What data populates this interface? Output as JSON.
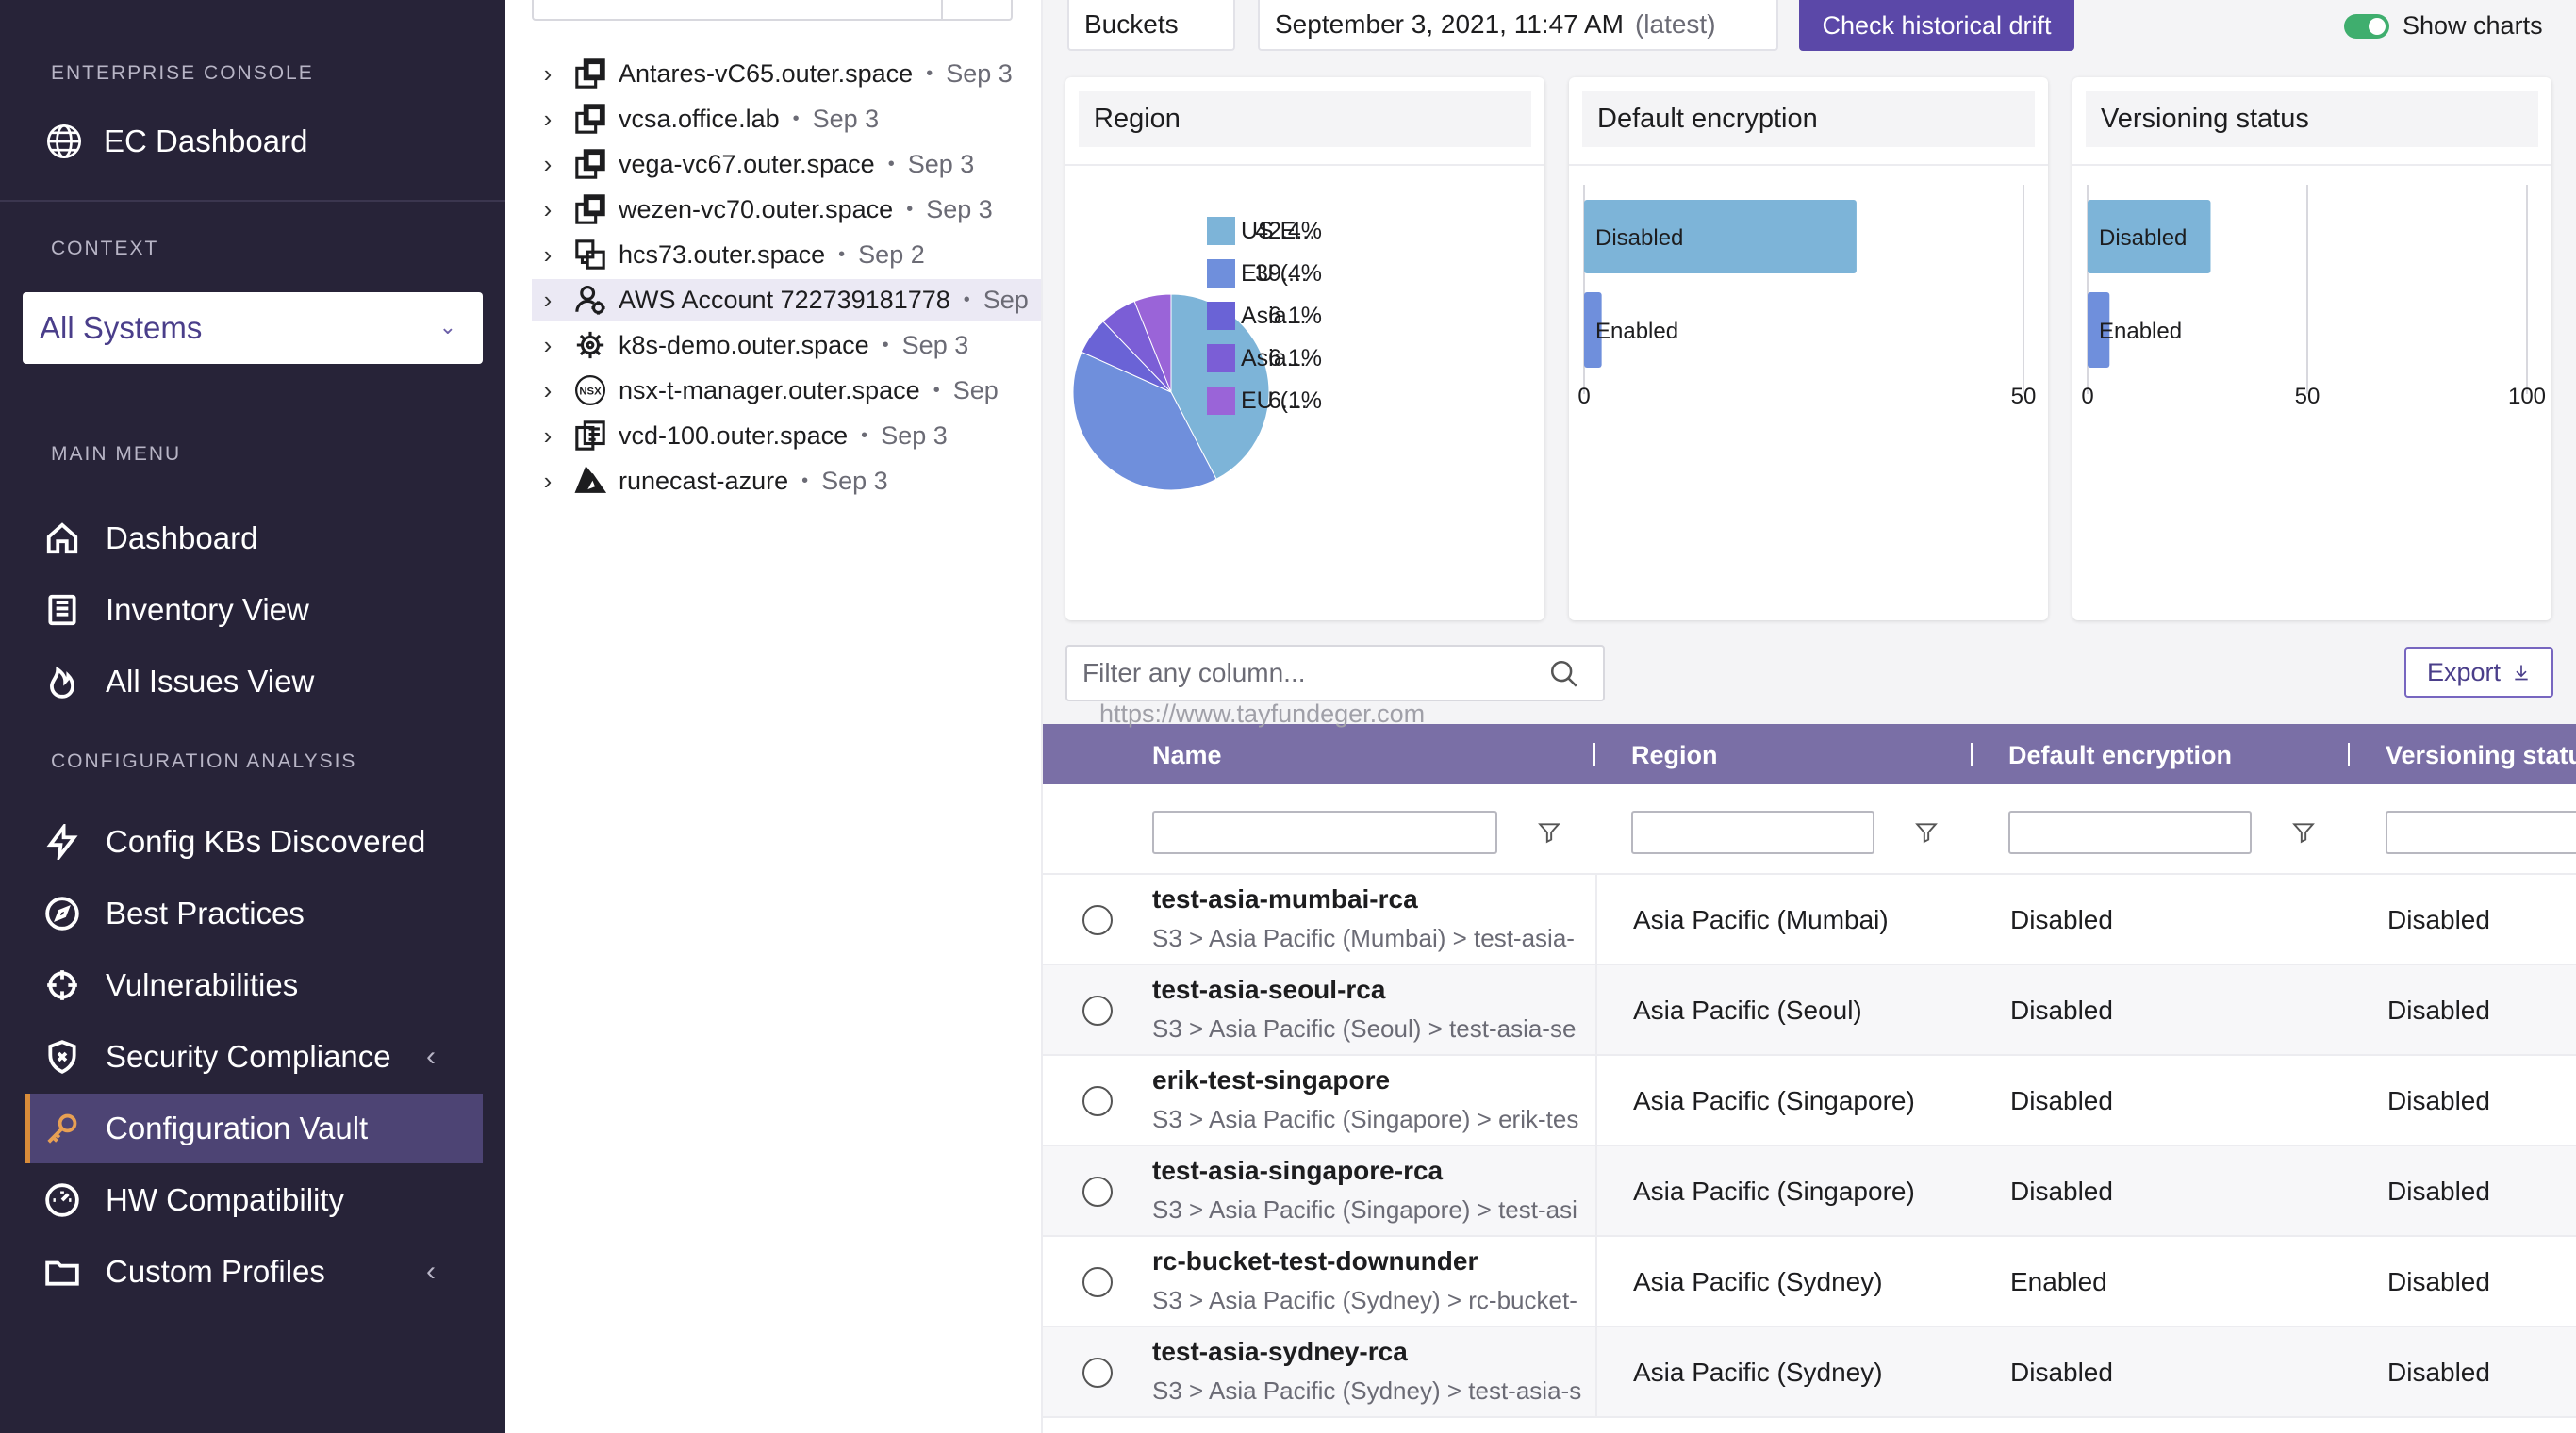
{
  "sidebar": {
    "section_console": "ENTERPRISE CONSOLE",
    "app_title": "EC Dashboard",
    "section_context": "CONTEXT",
    "context_value": "All Systems",
    "section_main": "MAIN MENU",
    "main_items": [
      {
        "label": "Dashboard",
        "icon": "home-icon"
      },
      {
        "label": "Inventory View",
        "icon": "book-icon"
      },
      {
        "label": "All Issues View",
        "icon": "flame-icon"
      }
    ],
    "section_config": "CONFIGURATION ANALYSIS",
    "config_items": [
      {
        "label": "Config KBs Discovered",
        "icon": "bolt-icon"
      },
      {
        "label": "Best Practices",
        "icon": "compass-icon"
      },
      {
        "label": "Vulnerabilities",
        "icon": "crosshair-icon"
      },
      {
        "label": "Security Compliance",
        "icon": "shield-icon"
      },
      {
        "label": "Configuration Vault",
        "icon": "key-icon"
      },
      {
        "label": "HW Compatibility",
        "icon": "gauge-icon"
      },
      {
        "label": "Custom Profiles",
        "icon": "folder-icon"
      }
    ],
    "active_color": "#d98c3a"
  },
  "tree": {
    "items": [
      {
        "name": "Antares-vC65.outer.space",
        "date": "Sep 3",
        "icon": "vcenter-icon"
      },
      {
        "name": "vcsa.office.lab",
        "date": "Sep 3",
        "icon": "vcenter-icon"
      },
      {
        "name": "vega-vc67.outer.space",
        "date": "Sep 3",
        "icon": "vcenter-icon"
      },
      {
        "name": "wezen-vc70.outer.space",
        "date": "Sep 3",
        "icon": "vcenter-icon"
      },
      {
        "name": "hcs73.outer.space",
        "date": "Sep 2",
        "icon": "hcs-icon"
      },
      {
        "name": "AWS Account 722739181778",
        "date": "Sep",
        "icon": "aws-account-icon"
      },
      {
        "name": "k8s-demo.outer.space",
        "date": "Sep 3",
        "icon": "kubernetes-icon"
      },
      {
        "name": "nsx-t-manager.outer.space",
        "date": "Sep",
        "icon": "nsxt-icon"
      },
      {
        "name": "vcd-100.outer.space",
        "date": "Sep 3",
        "icon": "vcd-icon"
      },
      {
        "name": "runecast-azure",
        "date": "Sep 3",
        "icon": "azure-icon"
      }
    ]
  },
  "topbar": {
    "dropdown": "Buckets",
    "timestamp": "September 3, 2021, 11:47 AM",
    "timestamp_note": "(latest)",
    "drift_button": "Check historical drift",
    "show_charts": "Show charts",
    "accent": "#5b48a8"
  },
  "cards": {
    "region_title": "Region",
    "encryption_title": "Default encryption",
    "versioning_title": "Versioning status"
  },
  "chart_data": [
    {
      "type": "pie",
      "title": "Region",
      "categories": [
        "US E...",
        "EU (...",
        "Asia...",
        "Asia...",
        "EU (..."
      ],
      "values": [
        42.4,
        39.4,
        6.1,
        6.1,
        6.1
      ],
      "labels": [
        "42.4%",
        "39.4%",
        "6.1%",
        "6.1%",
        "6.1%"
      ],
      "colors": [
        "#7db4d8",
        "#6f8fdc",
        "#6a63d6",
        "#7b5ed6",
        "#9a64d8"
      ]
    },
    {
      "type": "bar",
      "orientation": "horizontal",
      "title": "Default encryption",
      "categories": [
        "Disabled",
        "Enabled"
      ],
      "values": [
        31,
        2
      ],
      "xlim": [
        0,
        50
      ],
      "ticks": [
        0,
        50
      ],
      "tick_labels": [
        "0",
        "50"
      ],
      "colors": [
        "#7db4d8",
        "#6f8fdc"
      ]
    },
    {
      "type": "bar",
      "orientation": "horizontal",
      "title": "Versioning status",
      "categories": [
        "Disabled",
        "Enabled"
      ],
      "values": [
        28,
        5
      ],
      "xlim": [
        0,
        100
      ],
      "ticks": [
        0,
        50,
        100
      ],
      "tick_labels": [
        "0",
        "50",
        "100"
      ],
      "colors": [
        "#7db4d8",
        "#6f8fdc"
      ]
    }
  ],
  "filter": {
    "placeholder": "Filter any column...",
    "export_label": "Export",
    "watermark": "https://www.tayfundeger.com"
  },
  "table": {
    "headers": [
      "Name",
      "Region",
      "Default encryption",
      "Versioning statu"
    ],
    "header_bg": "#7a6fa6",
    "rows": [
      {
        "name": "test-asia-mumbai-rca",
        "path": "S3 > Asia Pacific (Mumbai) > test-asia-",
        "region": "Asia Pacific (Mumbai)",
        "encryption": "Disabled",
        "versioning": "Disabled"
      },
      {
        "name": "test-asia-seoul-rca",
        "path": "S3 > Asia Pacific (Seoul) > test-asia-se",
        "region": "Asia Pacific (Seoul)",
        "encryption": "Disabled",
        "versioning": "Disabled"
      },
      {
        "name": "erik-test-singapore",
        "path": "S3 > Asia Pacific (Singapore) > erik-tes",
        "region": "Asia Pacific (Singapore)",
        "encryption": "Disabled",
        "versioning": "Disabled"
      },
      {
        "name": "test-asia-singapore-rca",
        "path": "S3 > Asia Pacific (Singapore) > test-asi",
        "region": "Asia Pacific (Singapore)",
        "encryption": "Disabled",
        "versioning": "Disabled"
      },
      {
        "name": "rc-bucket-test-downunder",
        "path": "S3 > Asia Pacific (Sydney) > rc-bucket-",
        "region": "Asia Pacific (Sydney)",
        "encryption": "Enabled",
        "versioning": "Disabled"
      },
      {
        "name": "test-asia-sydney-rca",
        "path": "S3 > Asia Pacific (Sydney) > test-asia-s",
        "region": "Asia Pacific (Sydney)",
        "encryption": "Disabled",
        "versioning": "Disabled"
      }
    ]
  }
}
